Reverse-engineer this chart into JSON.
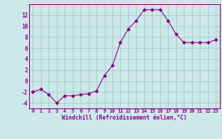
{
  "x": [
    0,
    1,
    2,
    3,
    4,
    5,
    6,
    7,
    8,
    9,
    10,
    11,
    12,
    13,
    14,
    15,
    16,
    17,
    18,
    19,
    20,
    21,
    22,
    23
  ],
  "y": [
    -2,
    -1.5,
    -2.5,
    -4,
    -2.7,
    -2.7,
    -2.5,
    -2.3,
    -1.8,
    1,
    2.8,
    7,
    9.5,
    11,
    13,
    13,
    13,
    11,
    8.5,
    7,
    7,
    7,
    7,
    7.5
  ],
  "line_color": "#880088",
  "marker": "D",
  "marker_size": 2.5,
  "bg_color": "#cce8e8",
  "grid_color": "#aacccc",
  "xlabel": "Windchill (Refroidissement éolien,°C)",
  "xlabel_color": "#880088",
  "tick_color": "#880088",
  "ylim": [
    -5,
    14
  ],
  "yticks": [
    -4,
    -2,
    0,
    2,
    4,
    6,
    8,
    10,
    12
  ],
  "ytick_labels": [
    "-4",
    "-2",
    "0",
    "2",
    "4",
    "6",
    "8",
    "10",
    "12"
  ],
  "xlim": [
    -0.5,
    23.5
  ]
}
